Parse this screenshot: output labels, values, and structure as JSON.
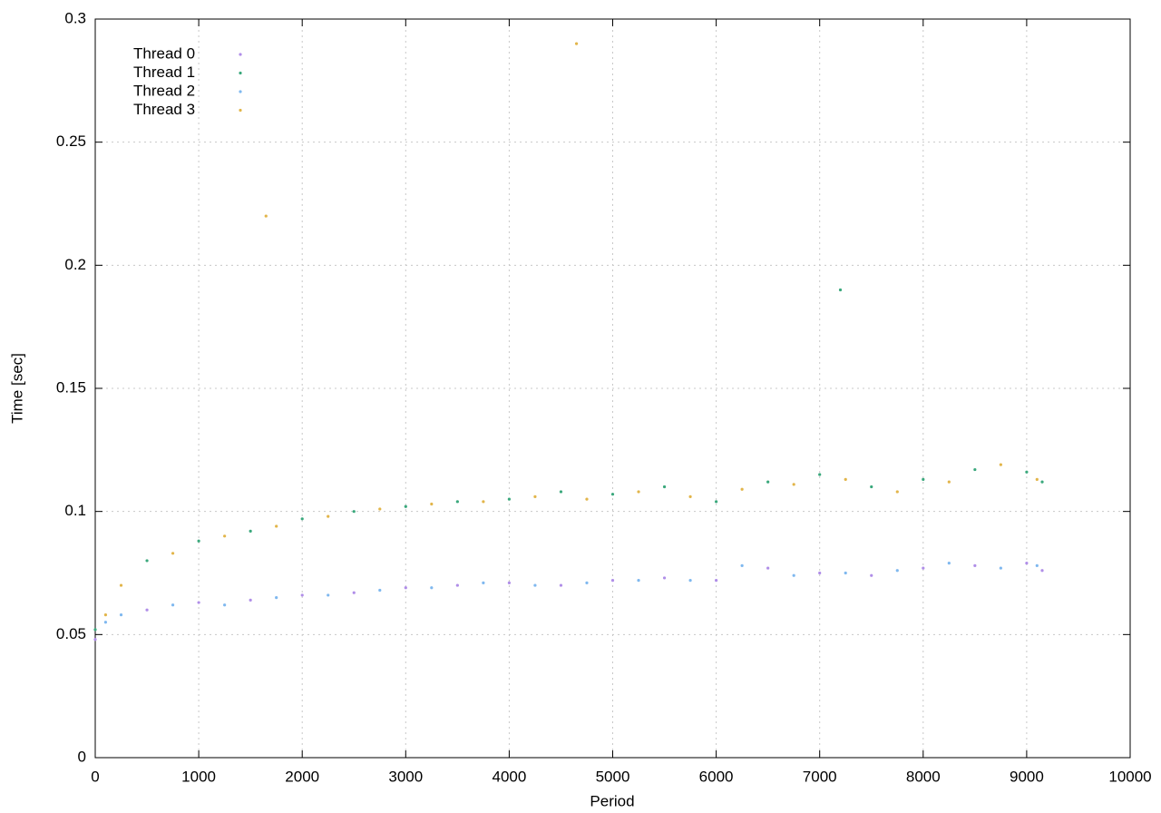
{
  "chart_data": {
    "type": "scatter",
    "x_label": "Period",
    "y_label": "Time [sec]",
    "xlim": [
      0,
      10000
    ],
    "xticks": [
      0,
      1000,
      2000,
      3000,
      4000,
      5000,
      6000,
      7000,
      8000,
      9000,
      10000
    ],
    "ylim": [
      0,
      0.3
    ],
    "yticks": [
      0,
      0.05,
      0.1,
      0.15,
      0.2,
      0.25,
      0.3
    ],
    "grid": true,
    "legend": "top-left",
    "series": [
      {
        "name": "Thread 0",
        "color": "#b08ee8",
        "x": [
          0,
          500,
          1000,
          1500,
          2000,
          2500,
          3000,
          3500,
          4000,
          4500,
          5000,
          5500,
          6000,
          6500,
          7000,
          7500,
          8000,
          8500,
          9000,
          9150
        ],
        "values": [
          0.048,
          0.06,
          0.063,
          0.064,
          0.066,
          0.067,
          0.069,
          0.07,
          0.071,
          0.07,
          0.072,
          0.073,
          0.072,
          0.077,
          0.075,
          0.074,
          0.077,
          0.078,
          0.079,
          0.076
        ]
      },
      {
        "name": "Thread 1",
        "color": "#3aa87c",
        "x": [
          0,
          500,
          1000,
          1500,
          2000,
          2500,
          3000,
          3500,
          4000,
          4500,
          5000,
          5500,
          6000,
          6500,
          7000,
          7200,
          7500,
          8000,
          8500,
          9000,
          9150
        ],
        "values": [
          0.052,
          0.08,
          0.088,
          0.092,
          0.097,
          0.1,
          0.102,
          0.104,
          0.105,
          0.108,
          0.107,
          0.11,
          0.104,
          0.112,
          0.115,
          0.19,
          0.11,
          0.113,
          0.117,
          0.116,
          0.112
        ]
      },
      {
        "name": "Thread 2",
        "color": "#7fb8ef",
        "x": [
          100,
          250,
          750,
          1250,
          1750,
          2250,
          2750,
          3250,
          3750,
          4250,
          4750,
          5250,
          5750,
          6250,
          6750,
          7250,
          7750,
          8250,
          8750,
          9100
        ],
        "values": [
          0.055,
          0.058,
          0.062,
          0.062,
          0.065,
          0.066,
          0.068,
          0.069,
          0.071,
          0.07,
          0.071,
          0.072,
          0.072,
          0.078,
          0.074,
          0.075,
          0.076,
          0.079,
          0.077,
          0.078
        ]
      },
      {
        "name": "Thread 3",
        "color": "#e2b54a",
        "x": [
          100,
          250,
          750,
          1250,
          1650,
          1750,
          2250,
          2750,
          3250,
          3750,
          4250,
          4650,
          4750,
          5250,
          5750,
          6250,
          6750,
          7250,
          7750,
          8250,
          8750,
          9100
        ],
        "values": [
          0.058,
          0.07,
          0.083,
          0.09,
          0.22,
          0.094,
          0.098,
          0.101,
          0.103,
          0.104,
          0.106,
          0.29,
          0.105,
          0.108,
          0.106,
          0.109,
          0.111,
          0.113,
          0.108,
          0.112,
          0.119,
          0.113
        ]
      }
    ]
  }
}
